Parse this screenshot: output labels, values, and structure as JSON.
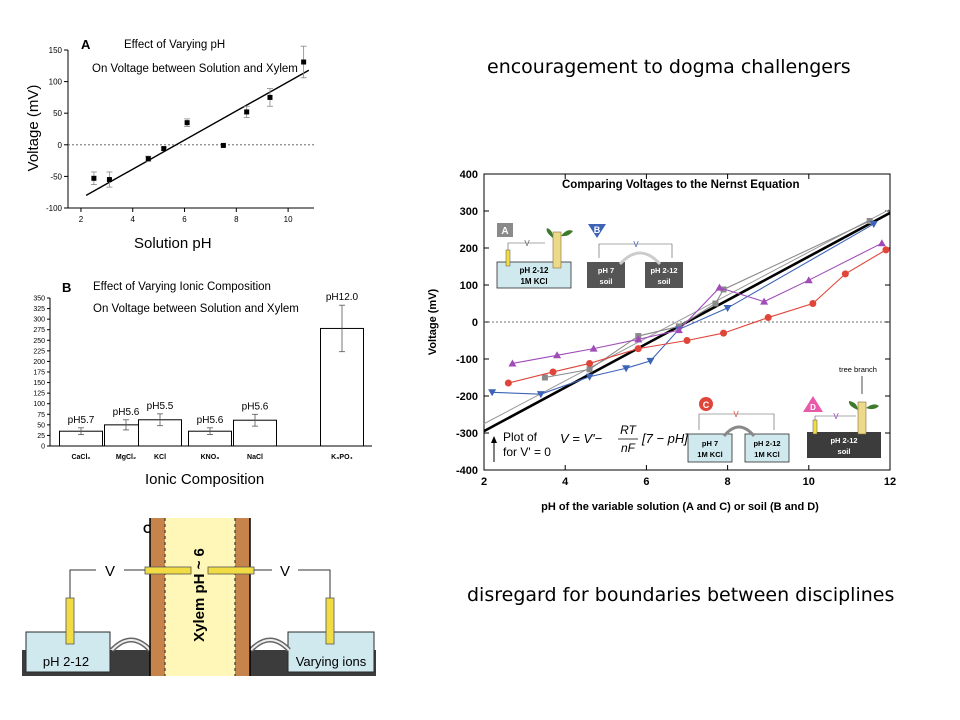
{
  "headline_top": "encouragement to dogma challengers",
  "headline_bottom": "disregard for boundaries between disciplines",
  "colors": {
    "red": "#e0453a",
    "purple": "#a04bb8",
    "blue": "#3d63b7",
    "gray": "#8a8a8a",
    "black": "#000000",
    "soil": "#3c3c3c",
    "water": "#cfe9ee",
    "xylem": "#fff7b8",
    "bark": "#c7834c"
  },
  "panel_a": {
    "letter": "A",
    "title": "Effect of Varying pH",
    "subtitle": "On Voltage between Solution and Xylem",
    "xlabel": "Solution pH",
    "ylabel": "Voltage (mV)"
  },
  "panel_b": {
    "letter": "B",
    "title": "Effect of Varying Ionic Composition",
    "subtitle": "On Voltage between Solution and Xylem",
    "xlabel": "Ionic Composition"
  },
  "panel_c": {
    "letter": "C",
    "xylem_label": "Xylem pH ~ 6",
    "v_left": "V",
    "v_right": "V",
    "left_bath": "pH 2-12",
    "right_bath": "Varying ions",
    "soil": "soil"
  },
  "panel_d": {
    "title": "Comparing Voltages to the Nernst Equation",
    "xlabel": "pH of the variable solution (A and C) or soil (B and D)",
    "ylabel": "Voltage (mV)",
    "plot_of": "Plot of",
    "for_v": "for V' = 0",
    "eq_lhs": "V = V'−",
    "eq_num": "RT",
    "eq_den": "nF",
    "eq_rhs": "[7 − pH]",
    "inset_a": {
      "letter": "A",
      "line1": "pH 2-12",
      "line2": "1M KCl",
      "v": "V"
    },
    "inset_b": {
      "letter": "B",
      "left1": "pH 7",
      "left2": "soil",
      "right1": "pH 2-12",
      "right2": "soil",
      "v": "V"
    },
    "inset_c": {
      "letter": "C",
      "left1": "pH 7",
      "left2": "1M KCl",
      "right1": "pH 2-12",
      "right2": "1M KCl",
      "v": "V"
    },
    "inset_d": {
      "letter": "D",
      "line1": "pH 2-12",
      "line2": "soil",
      "v": "V",
      "branch": "tree branch"
    }
  },
  "chart_data": [
    {
      "type": "scatter",
      "title": "Effect of Varying pH",
      "subtitle": "On Voltage between Solution and Xylem",
      "xlabel": "Solution pH",
      "ylabel": "Voltage (mV)",
      "xlim": [
        1.5,
        11
      ],
      "ylim": [
        -100,
        150
      ],
      "xticks": [
        2,
        4,
        6,
        8,
        10
      ],
      "yticks": [
        -100,
        -50,
        0,
        50,
        100,
        150
      ],
      "points": [
        {
          "x": 2.5,
          "y": -53,
          "err": 10
        },
        {
          "x": 3.1,
          "y": -55,
          "err": 12
        },
        {
          "x": 4.6,
          "y": -22,
          "err": 4
        },
        {
          "x": 5.2,
          "y": -6,
          "err": 2
        },
        {
          "x": 6.1,
          "y": 35,
          "err": 6
        },
        {
          "x": 7.5,
          "y": -1,
          "err": 0
        },
        {
          "x": 8.4,
          "y": 52,
          "err": 9
        },
        {
          "x": 9.3,
          "y": 75,
          "err": 14
        },
        {
          "x": 10.6,
          "y": 131,
          "err": 25
        }
      ],
      "fit_line": [
        [
          2.2,
          -80
        ],
        [
          10.8,
          118
        ]
      ],
      "reference_line_y": 0
    },
    {
      "type": "bar",
      "title": "Effect of Varying Ionic Composition",
      "subtitle": "On Voltage between Solution and Xylem",
      "xlabel": "Ionic Composition",
      "ylim": [
        0,
        350
      ],
      "yticks": [
        0,
        25,
        50,
        75,
        100,
        125,
        150,
        175,
        200,
        225,
        250,
        275,
        300,
        325,
        350
      ],
      "categories": [
        "CaCl₂",
        "MgCl₂",
        "KCl",
        "KNO₃",
        "NaCl",
        "K₃PO₄"
      ],
      "values": [
        35,
        50,
        62,
        35,
        61,
        278
      ],
      "errors": [
        8,
        12,
        14,
        8,
        14,
        55
      ],
      "ph_labels": [
        "pH5.7",
        "pH5.6",
        "pH5.5",
        "pH5.6",
        "pH5.6",
        "pH12.0"
      ]
    },
    {
      "type": "line",
      "title": "Comparing Voltages to the Nernst Equation",
      "xlabel": "pH of the variable solution (A and C) or soil (B and D)",
      "ylabel": "Voltage (mV)",
      "xlim": [
        2,
        12
      ],
      "ylim": [
        -400,
        400
      ],
      "xticks": [
        2,
        4,
        6,
        8,
        10,
        12
      ],
      "yticks": [
        -400,
        -300,
        -200,
        -100,
        0,
        100,
        200,
        300,
        400
      ],
      "reference_line_y": 0,
      "series": [
        {
          "name": "A",
          "marker": "square",
          "color": "#8a8a8a",
          "x": [
            3.5,
            4.6,
            5.8,
            6.8,
            7.7,
            7.9,
            11.5
          ],
          "y": [
            -150,
            -128,
            -38,
            -12,
            50,
            88,
            273
          ]
        },
        {
          "name": "B",
          "marker": "triangle-down",
          "color": "#3d63b7",
          "x": [
            2.2,
            3.4,
            4.6,
            5.5,
            6.1,
            6.8,
            8.0,
            11.6
          ],
          "y": [
            -190,
            -195,
            -148,
            -125,
            -105,
            -20,
            38,
            265
          ]
        },
        {
          "name": "C",
          "marker": "circle",
          "color": "#e0453a",
          "x": [
            2.6,
            3.7,
            4.6,
            5.8,
            7.0,
            7.9,
            9.0,
            10.1,
            10.9,
            11.9
          ],
          "y": [
            -165,
            -135,
            -112,
            -72,
            -50,
            -30,
            12,
            50,
            130,
            195
          ]
        },
        {
          "name": "D",
          "marker": "triangle-up",
          "color": "#a04bb8",
          "x": [
            2.7,
            3.8,
            4.7,
            5.8,
            6.8,
            7.8,
            8.9,
            10.0,
            11.8
          ],
          "y": [
            -112,
            -90,
            -72,
            -47,
            -22,
            93,
            55,
            113,
            213
          ]
        }
      ],
      "nernst_line": {
        "name": "Nernst",
        "x": [
          2,
          12
        ],
        "y": [
          -295,
          295
        ]
      },
      "gray_line": {
        "x": [
          2,
          12
        ],
        "y": [
          -275,
          305
        ]
      }
    }
  ]
}
